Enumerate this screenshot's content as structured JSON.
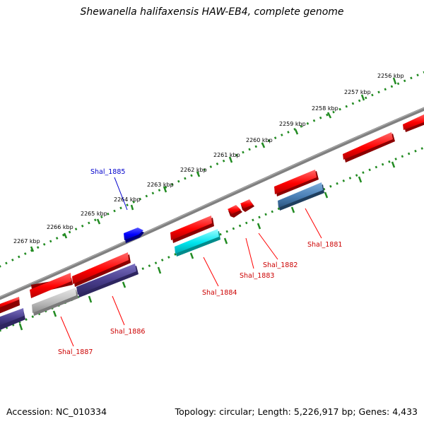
{
  "title": "Shewanella halifaxensis HAW-EB4, complete genome",
  "footer": {
    "accession": "Accession: NC_010334",
    "summary": "Topology: circular; Length: 5,226,917 bp; Genes: 4,433"
  },
  "colors": {
    "backbone": "#808080",
    "tick": "#228b22",
    "forward_label": "#0000cc",
    "reverse_label": "#cc0000"
  },
  "tick_labels": [
    "2256 kbp",
    "2257 kbp",
    "2258 kbp",
    "2259 kbp",
    "2260 kbp",
    "2261 kbp",
    "2262 kbp",
    "2263 kbp",
    "2264 kbp",
    "2265 kbp",
    "2266 kbp",
    "2267 kbp"
  ],
  "genes": [
    {
      "label": "Shal_1881",
      "strand": "reverse",
      "color": "#4a7fb5"
    },
    {
      "label": "Shal_1882",
      "strand": "reverse",
      "color": "#ff0000"
    },
    {
      "label": "Shal_1883",
      "strand": "reverse",
      "color": "#ff0000"
    },
    {
      "label": "Shal_1884",
      "strand": "reverse",
      "color": "#00e5ee"
    },
    {
      "label": "Shal_1885",
      "strand": "forward",
      "color": "#0000ff"
    },
    {
      "label": "Shal_1886",
      "strand": "reverse",
      "color": "#483d8b"
    },
    {
      "label": "Shal_1887",
      "strand": "reverse",
      "color": "#bebebe"
    }
  ]
}
